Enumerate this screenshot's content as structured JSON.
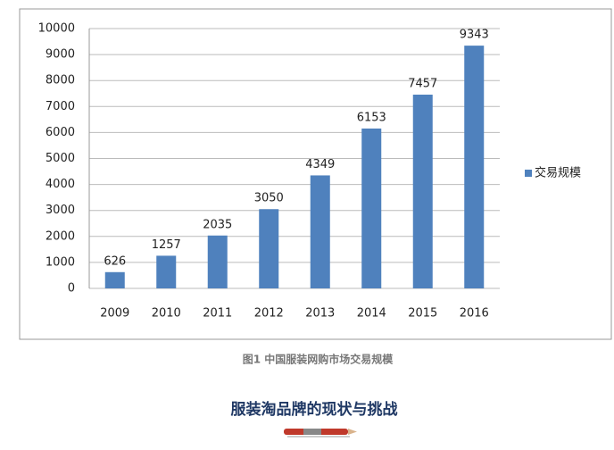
{
  "chart_data": {
    "type": "bar",
    "categories": [
      "2009",
      "2010",
      "2011",
      "2012",
      "2013",
      "2014",
      "2015",
      "2016"
    ],
    "series": [
      {
        "name": "交易规模",
        "color": "#4f81bd",
        "values": [
          626,
          1257,
          2035,
          3050,
          4349,
          6153,
          7457,
          9343
        ]
      }
    ],
    "ylim": [
      0,
      10000
    ],
    "yticks": [
      0,
      1000,
      2000,
      3000,
      4000,
      5000,
      6000,
      7000,
      8000,
      9000,
      10000
    ],
    "grid": true,
    "legend": "right",
    "caption": "图1 中国服装网购市场交易规模"
  },
  "article": {
    "heading": "服装淘品牌的现状与挑战"
  }
}
